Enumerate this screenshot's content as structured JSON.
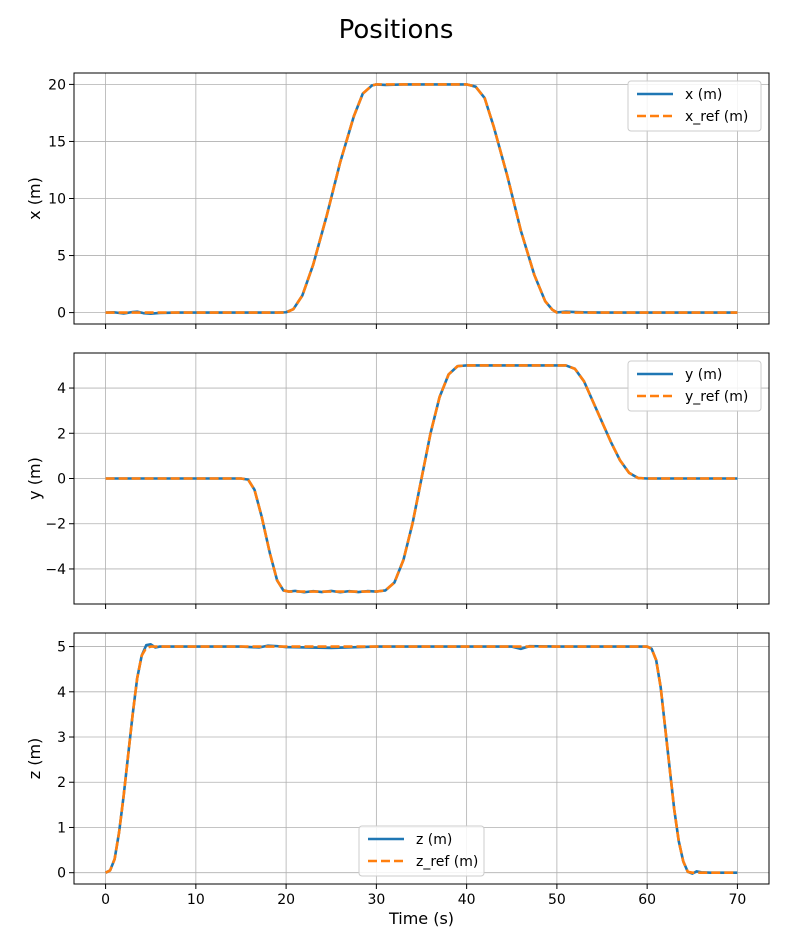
{
  "figure": {
    "title": "Positions"
  },
  "chart_data": [
    {
      "type": "line",
      "xlabel": "",
      "ylabel": "x (m)",
      "xlim": [
        -3.5,
        73.5
      ],
      "ylim": [
        -1.0,
        21.0
      ],
      "xticks": [
        0,
        10,
        20,
        30,
        40,
        50,
        60,
        70
      ],
      "xtick_labels_visible": false,
      "yticks": [
        0,
        5,
        10,
        15,
        20
      ],
      "ytick_labels": [
        "0",
        "5",
        "10",
        "15",
        "20"
      ],
      "grid": true,
      "legend_position": "upper right",
      "series": [
        {
          "name": "x (m)",
          "color": "#1f77b4",
          "style": "solid",
          "points": [
            [
              0,
              0
            ],
            [
              1,
              0.02
            ],
            [
              2,
              -0.08
            ],
            [
              3,
              0.05
            ],
            [
              3.5,
              0.08
            ],
            [
              4.2,
              -0.05
            ],
            [
              5,
              -0.1
            ],
            [
              6,
              -0.03
            ],
            [
              8,
              0
            ],
            [
              19,
              0
            ],
            [
              20,
              0.03
            ],
            [
              20.8,
              0.3
            ],
            [
              21.8,
              1.5
            ],
            [
              23,
              4.2
            ],
            [
              24.5,
              8.5
            ],
            [
              26,
              13.2
            ],
            [
              27.5,
              17.2
            ],
            [
              28.5,
              19.2
            ],
            [
              29.5,
              19.9
            ],
            [
              30,
              20.0
            ],
            [
              31,
              19.95
            ],
            [
              33,
              20.0
            ],
            [
              35,
              20.0
            ],
            [
              38,
              20.0
            ],
            [
              40,
              20.0
            ],
            [
              41,
              19.8
            ],
            [
              42,
              18.8
            ],
            [
              43,
              16.3
            ],
            [
              44.5,
              12.0
            ],
            [
              46,
              7.2
            ],
            [
              47.5,
              3.3
            ],
            [
              48.7,
              1.0
            ],
            [
              49.5,
              0.25
            ],
            [
              50,
              0.02
            ],
            [
              51,
              0.08
            ],
            [
              52,
              0.05
            ],
            [
              53,
              0.02
            ],
            [
              55,
              0
            ],
            [
              70,
              0
            ]
          ]
        },
        {
          "name": "x_ref (m)",
          "color": "#ff7f0e",
          "style": "dashed",
          "points": [
            [
              0,
              0
            ],
            [
              20,
              0
            ],
            [
              20.8,
              0.3
            ],
            [
              21.8,
              1.5
            ],
            [
              23,
              4.2
            ],
            [
              24.5,
              8.5
            ],
            [
              26,
              13.2
            ],
            [
              27.5,
              17.2
            ],
            [
              28.5,
              19.2
            ],
            [
              29.5,
              19.9
            ],
            [
              30,
              20.0
            ],
            [
              40,
              20.0
            ],
            [
              41,
              19.8
            ],
            [
              42,
              18.8
            ],
            [
              43,
              16.3
            ],
            [
              44.5,
              12.0
            ],
            [
              46,
              7.2
            ],
            [
              47.5,
              3.3
            ],
            [
              48.7,
              1.0
            ],
            [
              49.5,
              0.25
            ],
            [
              50,
              0
            ],
            [
              70,
              0
            ]
          ]
        }
      ]
    },
    {
      "type": "line",
      "xlabel": "",
      "ylabel": "y (m)",
      "xlim": [
        -3.5,
        73.5
      ],
      "ylim": [
        -5.55,
        5.55
      ],
      "xticks": [
        0,
        10,
        20,
        30,
        40,
        50,
        60,
        70
      ],
      "xtick_labels_visible": false,
      "yticks": [
        -4,
        -2,
        0,
        2,
        4
      ],
      "ytick_labels": [
        "−4",
        "−2",
        "0",
        "2",
        "4"
      ],
      "grid": true,
      "legend_position": "upper right",
      "series": [
        {
          "name": "y (m)",
          "color": "#1f77b4",
          "style": "solid",
          "points": [
            [
              0,
              0
            ],
            [
              15,
              0
            ],
            [
              15.8,
              -0.05
            ],
            [
              16.5,
              -0.5
            ],
            [
              17.3,
              -1.7
            ],
            [
              18.2,
              -3.3
            ],
            [
              19,
              -4.5
            ],
            [
              19.7,
              -4.95
            ],
            [
              20.3,
              -5.0
            ],
            [
              21,
              -4.97
            ],
            [
              22,
              -5.03
            ],
            [
              23,
              -4.98
            ],
            [
              24,
              -5.02
            ],
            [
              25,
              -4.97
            ],
            [
              26,
              -5.03
            ],
            [
              27,
              -4.98
            ],
            [
              28,
              -5.02
            ],
            [
              29,
              -4.98
            ],
            [
              30,
              -5.0
            ],
            [
              31,
              -4.95
            ],
            [
              32,
              -4.6
            ],
            [
              33,
              -3.6
            ],
            [
              34,
              -2.0
            ],
            [
              35,
              0.0
            ],
            [
              36,
              2.0
            ],
            [
              37,
              3.6
            ],
            [
              38,
              4.6
            ],
            [
              39,
              4.97
            ],
            [
              40,
              5.0
            ],
            [
              51,
              5.0
            ],
            [
              52,
              4.85
            ],
            [
              53,
              4.3
            ],
            [
              54,
              3.4
            ],
            [
              55,
              2.5
            ],
            [
              56,
              1.6
            ],
            [
              57,
              0.8
            ],
            [
              58,
              0.25
            ],
            [
              59,
              0.02
            ],
            [
              60,
              0
            ],
            [
              70,
              0
            ]
          ]
        },
        {
          "name": "y_ref (m)",
          "color": "#ff7f0e",
          "style": "dashed",
          "points": [
            [
              0,
              0
            ],
            [
              15,
              0
            ],
            [
              15.8,
              -0.05
            ],
            [
              16.5,
              -0.5
            ],
            [
              17.3,
              -1.7
            ],
            [
              18.2,
              -3.3
            ],
            [
              19,
              -4.5
            ],
            [
              19.7,
              -4.95
            ],
            [
              20.3,
              -5.0
            ],
            [
              30,
              -5.0
            ],
            [
              31,
              -4.95
            ],
            [
              32,
              -4.6
            ],
            [
              33,
              -3.6
            ],
            [
              34,
              -2.0
            ],
            [
              35,
              0.0
            ],
            [
              36,
              2.0
            ],
            [
              37,
              3.6
            ],
            [
              38,
              4.6
            ],
            [
              39,
              4.97
            ],
            [
              40,
              5.0
            ],
            [
              51,
              5.0
            ],
            [
              52,
              4.85
            ],
            [
              53,
              4.3
            ],
            [
              54,
              3.4
            ],
            [
              55,
              2.5
            ],
            [
              56,
              1.6
            ],
            [
              57,
              0.8
            ],
            [
              58,
              0.25
            ],
            [
              59,
              0.02
            ],
            [
              60,
              0
            ],
            [
              70,
              0
            ]
          ]
        }
      ]
    },
    {
      "type": "line",
      "xlabel": "Time (s)",
      "ylabel": "z (m)",
      "xlim": [
        -3.5,
        73.5
      ],
      "ylim": [
        -0.25,
        5.3
      ],
      "xticks": [
        0,
        10,
        20,
        30,
        40,
        50,
        60,
        70
      ],
      "xtick_labels_visible": true,
      "xtick_labels": [
        "0",
        "10",
        "20",
        "30",
        "40",
        "50",
        "60",
        "70"
      ],
      "yticks": [
        0,
        1,
        2,
        3,
        4,
        5
      ],
      "ytick_labels": [
        "0",
        "1",
        "2",
        "3",
        "4",
        "5"
      ],
      "grid": true,
      "legend_position": "lower center",
      "series": [
        {
          "name": "z (m)",
          "color": "#1f77b4",
          "style": "solid",
          "points": [
            [
              0,
              0
            ],
            [
              0.5,
              0.05
            ],
            [
              1,
              0.3
            ],
            [
              1.5,
              0.9
            ],
            [
              2,
              1.7
            ],
            [
              2.5,
              2.6
            ],
            [
              3,
              3.5
            ],
            [
              3.5,
              4.3
            ],
            [
              4,
              4.8
            ],
            [
              4.5,
              5.03
            ],
            [
              5,
              5.05
            ],
            [
              5.5,
              4.98
            ],
            [
              6,
              5.0
            ],
            [
              15,
              5.0
            ],
            [
              17,
              4.98
            ],
            [
              18,
              5.02
            ],
            [
              19,
              5.01
            ],
            [
              20,
              4.99
            ],
            [
              25,
              4.97
            ],
            [
              30,
              5.0
            ],
            [
              45,
              5.0
            ],
            [
              46,
              4.95
            ],
            [
              47,
              5.01
            ],
            [
              50,
              5.0
            ],
            [
              60,
              5.0
            ],
            [
              60.5,
              4.95
            ],
            [
              61,
              4.7
            ],
            [
              61.5,
              4.1
            ],
            [
              62,
              3.2
            ],
            [
              62.5,
              2.3
            ],
            [
              63,
              1.4
            ],
            [
              63.5,
              0.7
            ],
            [
              64,
              0.25
            ],
            [
              64.5,
              0.02
            ],
            [
              65,
              -0.02
            ],
            [
              65.5,
              0.03
            ],
            [
              66,
              0.01
            ],
            [
              67,
              0
            ],
            [
              70,
              0
            ]
          ]
        },
        {
          "name": "z_ref (m)",
          "color": "#ff7f0e",
          "style": "dashed",
          "points": [
            [
              0,
              0
            ],
            [
              0.5,
              0.05
            ],
            [
              1,
              0.3
            ],
            [
              1.5,
              0.9
            ],
            [
              2,
              1.7
            ],
            [
              2.5,
              2.6
            ],
            [
              3,
              3.5
            ],
            [
              3.5,
              4.3
            ],
            [
              4,
              4.8
            ],
            [
              4.5,
              4.97
            ],
            [
              5,
              5.0
            ],
            [
              60,
              5.0
            ],
            [
              60.5,
              4.95
            ],
            [
              61,
              4.7
            ],
            [
              61.5,
              4.1
            ],
            [
              62,
              3.2
            ],
            [
              62.5,
              2.3
            ],
            [
              63,
              1.4
            ],
            [
              63.5,
              0.7
            ],
            [
              64,
              0.25
            ],
            [
              64.5,
              0.02
            ],
            [
              65,
              0
            ],
            [
              70,
              0
            ]
          ]
        }
      ]
    }
  ]
}
